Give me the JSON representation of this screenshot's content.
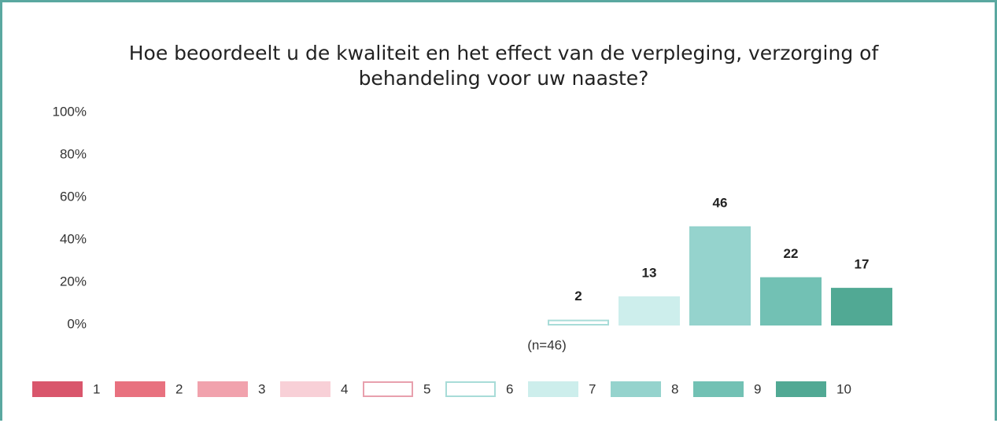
{
  "chart_data": {
    "type": "bar",
    "title": "Hoe beoordeelt u de kwaliteit en het effect van de verpleging, verzorging of behandeling voor uw naaste?",
    "categories": [
      "1",
      "2",
      "3",
      "4",
      "5",
      "6",
      "7",
      "8",
      "9",
      "10"
    ],
    "values": [
      null,
      null,
      null,
      null,
      null,
      2,
      13,
      46,
      22,
      17
    ],
    "colors": [
      "#d9566c",
      "#e8717f",
      "#f1a2ad",
      "#f8d0d7",
      "#ffffff",
      "#ffffff",
      "#cdeeec",
      "#95d3cd",
      "#72c1b4",
      "#51a994"
    ],
    "annotation": "(n=46)",
    "ylim": [
      0,
      100
    ],
    "yticks": [
      {
        "value": 0,
        "label": "0%"
      },
      {
        "value": 20,
        "label": "20%"
      },
      {
        "value": 40,
        "label": "40%"
      },
      {
        "value": 60,
        "label": "60%"
      },
      {
        "value": 80,
        "label": "80%"
      },
      {
        "value": 100,
        "label": "100%"
      }
    ],
    "grid": false,
    "legend": "bottom"
  }
}
